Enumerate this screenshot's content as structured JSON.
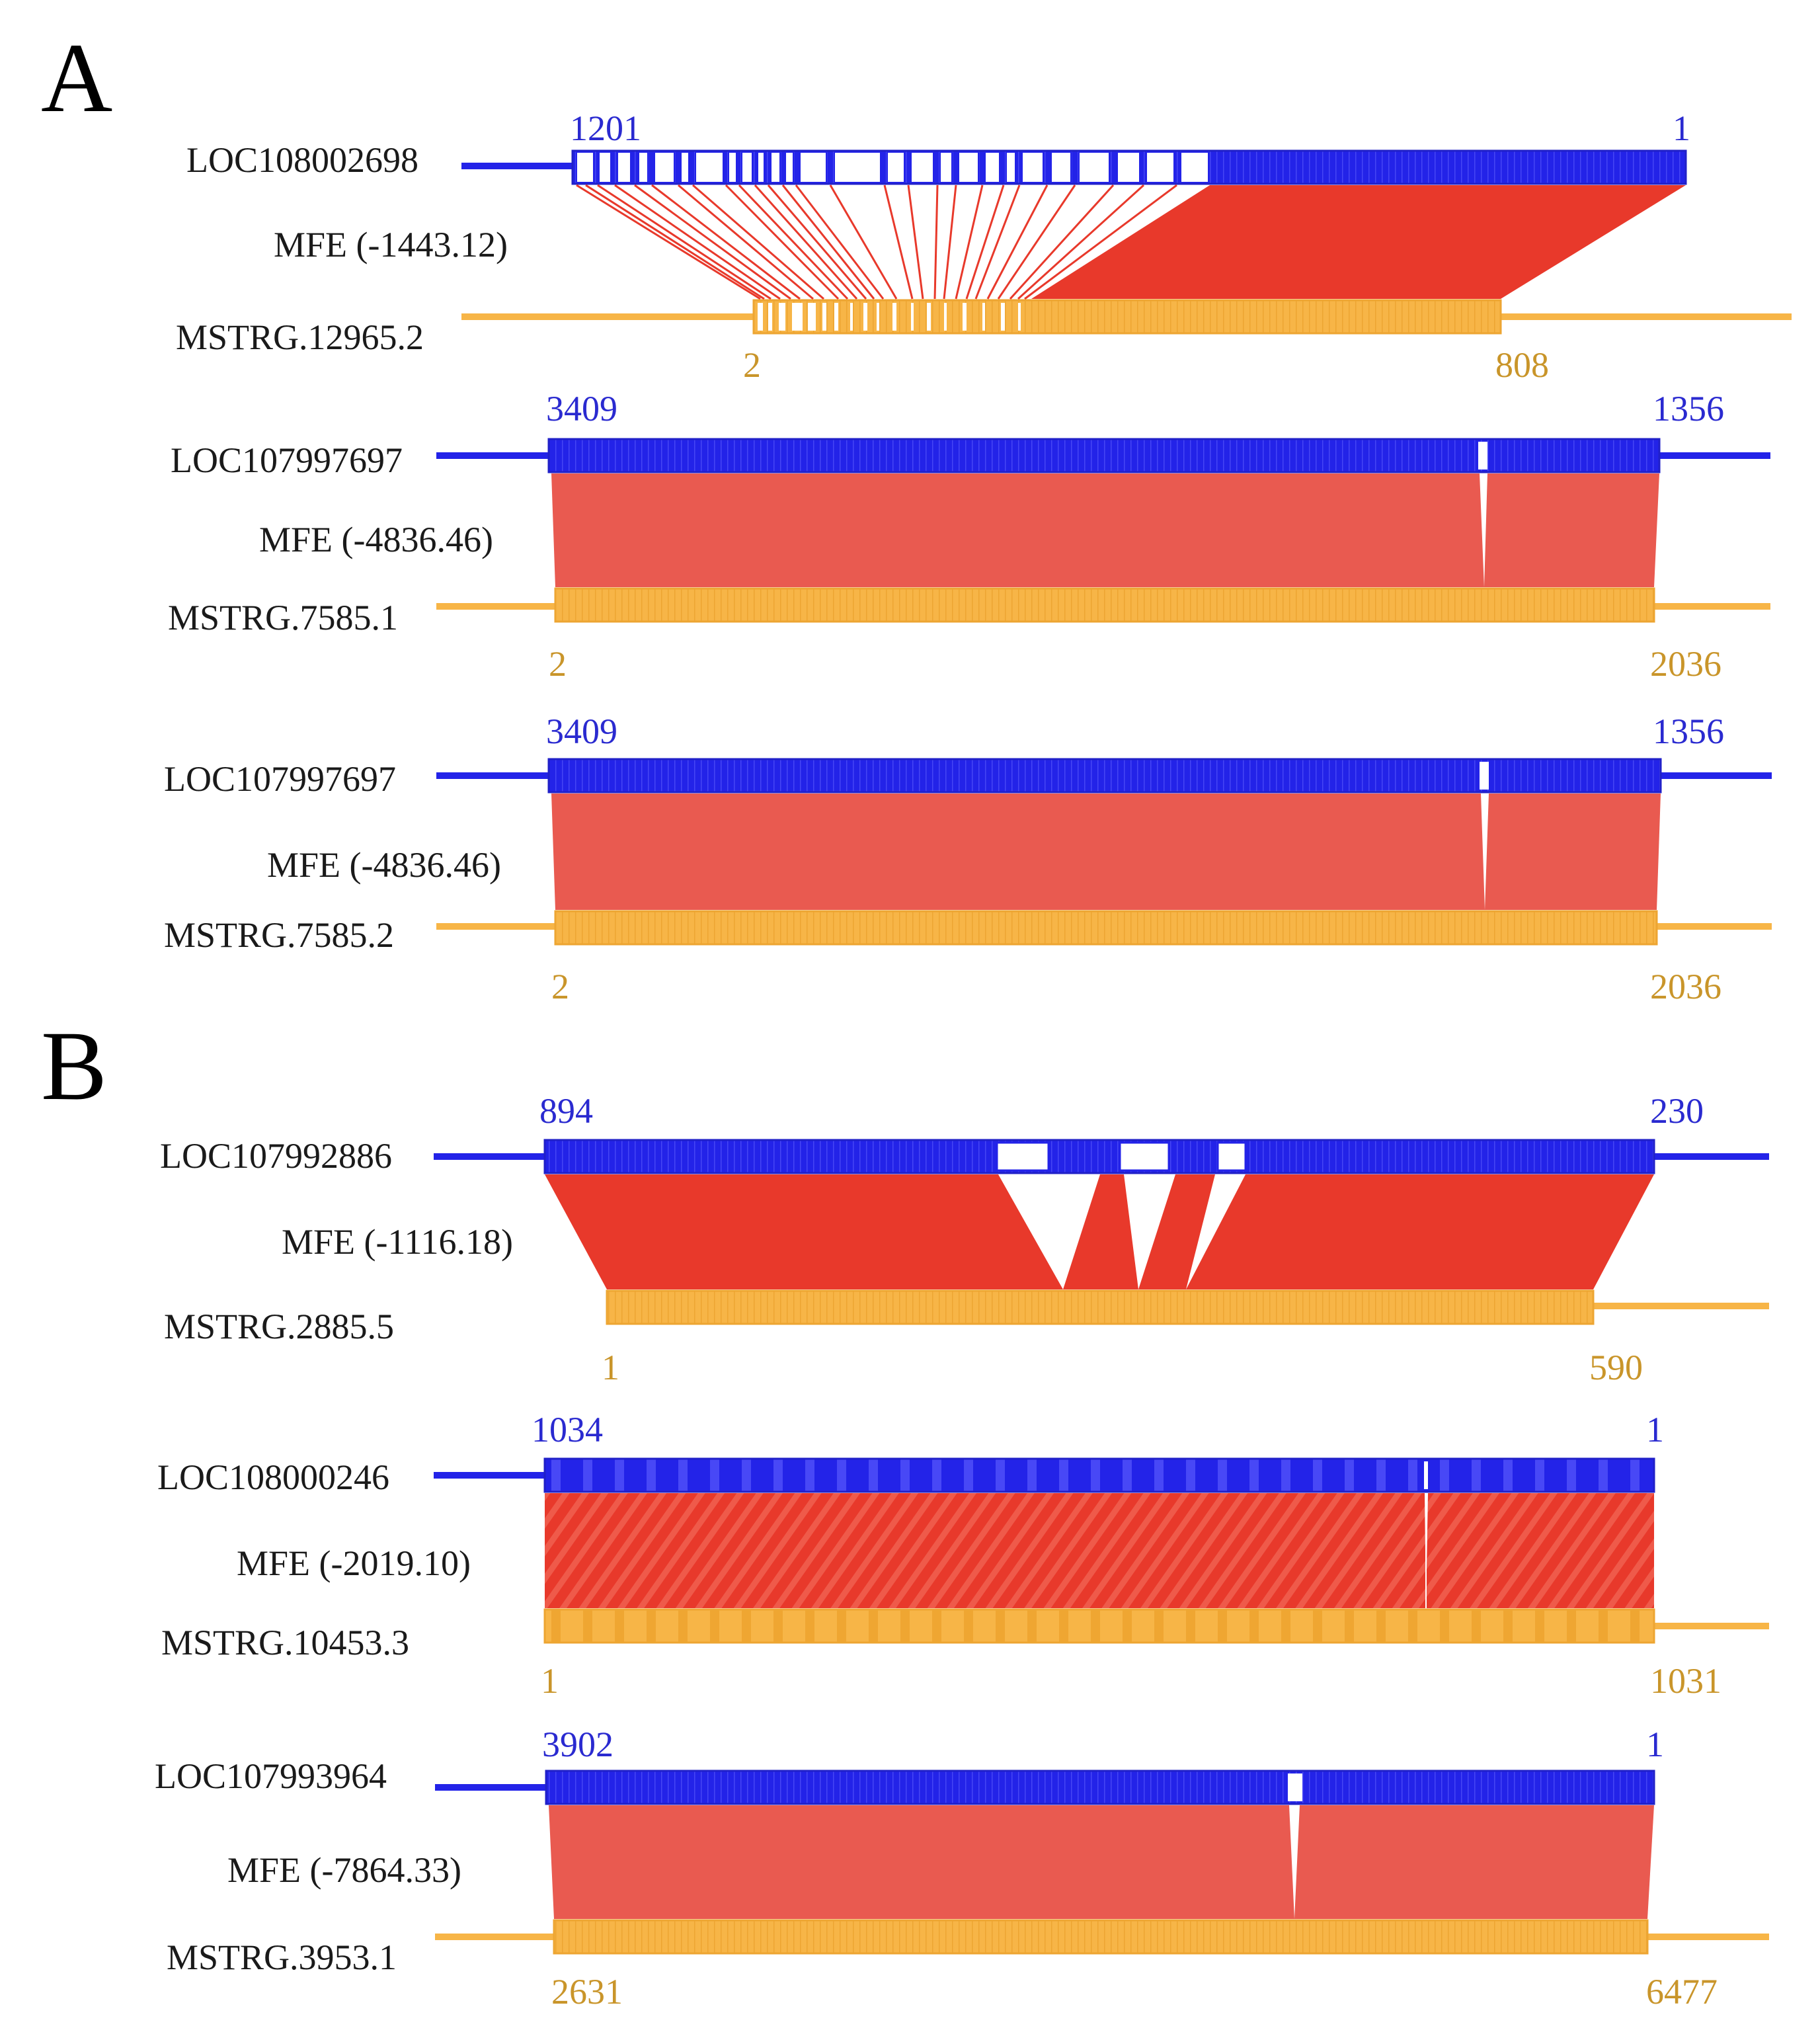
{
  "colors": {
    "query": "#2323e8",
    "target": "#f7b547",
    "target_dark": "#e9a02e",
    "hybrid": "#e8392b",
    "hybrid_light": "#e95a50",
    "query_num": "#2a2ad0",
    "target_num": "#c9952a"
  },
  "panels": [
    {
      "letter": "A"
    },
    {
      "letter": "B"
    }
  ],
  "alignments": [
    {
      "panel": "A",
      "query_name": "LOC108002698",
      "mfe": "MFE (-1443.12)",
      "target_name": "MSTRG.12965.2",
      "query_start": "1201",
      "query_end": "1",
      "target_start": "2",
      "target_end": "808"
    },
    {
      "panel": "A",
      "query_name": "LOC107997697",
      "mfe": "MFE (-4836.46)",
      "target_name": "MSTRG.7585.1",
      "query_start": "3409",
      "query_end": "1356",
      "target_start": "2",
      "target_end": "2036"
    },
    {
      "panel": "A",
      "query_name": "LOC107997697",
      "mfe": "MFE (-4836.46)",
      "target_name": "MSTRG.7585.2",
      "query_start": "3409",
      "query_end": "1356",
      "target_start": "2",
      "target_end": "2036"
    },
    {
      "panel": "B",
      "query_name": "LOC107992886",
      "mfe": "MFE (-1116.18)",
      "target_name": "MSTRG.2885.5",
      "query_start": "894",
      "query_end": "230",
      "target_start": "1",
      "target_end": "590"
    },
    {
      "panel": "B",
      "query_name": "LOC108000246",
      "mfe": "MFE (-2019.10)",
      "target_name": "MSTRG.10453.3",
      "query_start": "1034",
      "query_end": "1",
      "target_start": "1",
      "target_end": "1031"
    },
    {
      "panel": "B",
      "query_name": "LOC107993964",
      "mfe": "MFE (-7864.33)",
      "target_name": "MSTRG.3953.1",
      "query_start": "3902",
      "query_end": "1",
      "target_start": "2631",
      "target_end": "6477"
    }
  ]
}
